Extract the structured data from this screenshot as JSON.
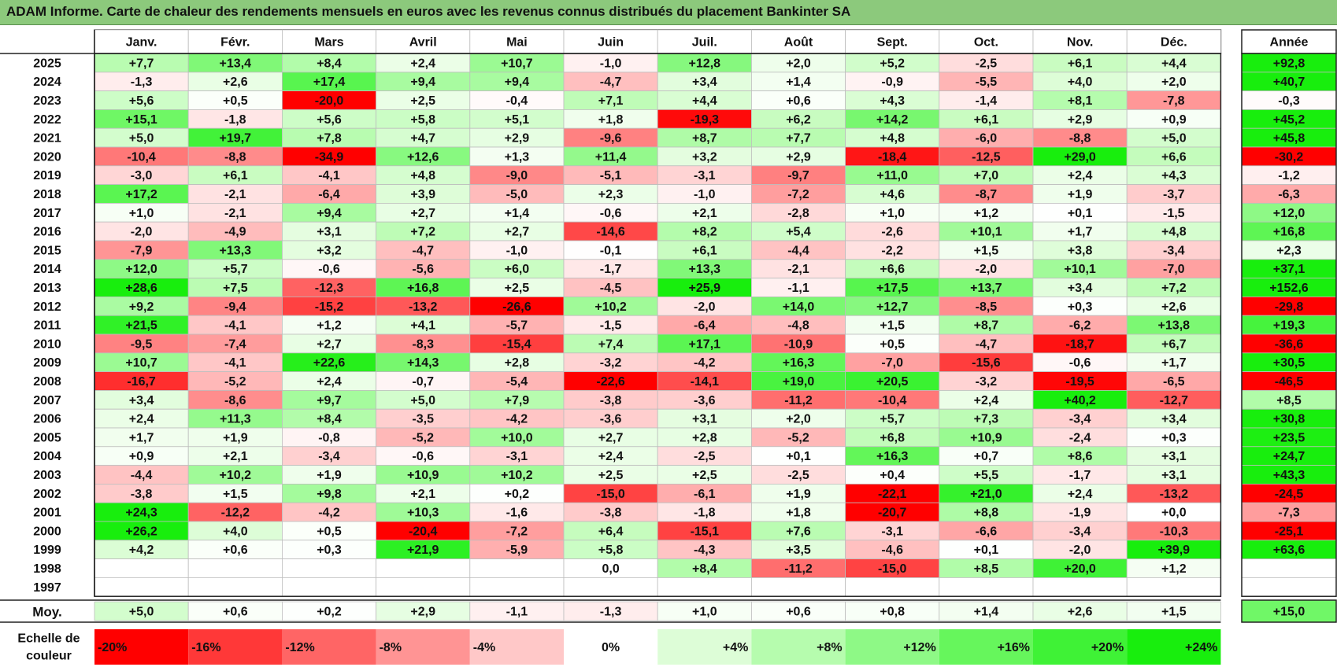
{
  "title": "ADAM Informe. Carte de chaleur des rendements mensuels en euros avec les revenus connus distribués du placement Bankinter SA",
  "chart_data": {
    "type": "heatmap",
    "title": "ADAM Informe. Carte de chaleur des rendements mensuels en euros avec les revenus connus distribués du placement Bankinter SA",
    "columns": [
      "Janv.",
      "Févr.",
      "Mars",
      "Avril",
      "Mai",
      "Juin",
      "Juil.",
      "Août",
      "Sept.",
      "Oct.",
      "Nov.",
      "Déc."
    ],
    "year_header": "Année",
    "rows": [
      {
        "label": "2025",
        "values": [
          7.7,
          13.4,
          8.4,
          2.4,
          10.7,
          -1.0,
          12.8,
          2.0,
          5.2,
          -2.5,
          6.1,
          4.4
        ],
        "year": 92.8
      },
      {
        "label": "2024",
        "values": [
          -1.3,
          2.6,
          17.4,
          9.4,
          9.4,
          -4.7,
          3.4,
          1.4,
          -0.9,
          -5.5,
          4.0,
          2.0
        ],
        "year": 40.7
      },
      {
        "label": "2023",
        "values": [
          5.6,
          0.5,
          -20.0,
          2.5,
          -0.4,
          7.1,
          4.4,
          0.6,
          4.3,
          -1.4,
          8.1,
          -7.8
        ],
        "year": -0.3
      },
      {
        "label": "2022",
        "values": [
          15.1,
          -1.8,
          5.6,
          5.8,
          5.1,
          1.8,
          -19.3,
          6.2,
          14.2,
          6.1,
          2.9,
          0.9
        ],
        "year": 45.2
      },
      {
        "label": "2021",
        "values": [
          5.0,
          19.7,
          7.8,
          4.7,
          2.9,
          -9.6,
          8.7,
          7.7,
          4.8,
          -6.0,
          -8.8,
          5.0
        ],
        "year": 45.8
      },
      {
        "label": "2020",
        "values": [
          -10.4,
          -8.8,
          -34.9,
          12.6,
          1.3,
          11.4,
          3.2,
          2.9,
          -18.4,
          -12.5,
          29.0,
          6.6
        ],
        "year": -30.2
      },
      {
        "label": "2019",
        "values": [
          -3.0,
          6.1,
          -4.1,
          4.8,
          -9.0,
          -5.1,
          -3.1,
          -9.7,
          11.0,
          7.0,
          2.4,
          4.3
        ],
        "year": -1.2
      },
      {
        "label": "2018",
        "values": [
          17.2,
          -2.1,
          -6.4,
          3.9,
          -5.0,
          2.3,
          -1.0,
          -7.2,
          4.6,
          -8.7,
          1.9,
          -3.7
        ],
        "year": -6.3
      },
      {
        "label": "2017",
        "values": [
          1.0,
          -2.1,
          9.4,
          2.7,
          1.4,
          -0.6,
          2.1,
          -2.8,
          1.0,
          1.2,
          0.1,
          -1.5
        ],
        "year": 12.0
      },
      {
        "label": "2016",
        "values": [
          -2.0,
          -4.9,
          3.1,
          7.2,
          2.7,
          -14.6,
          8.2,
          5.4,
          -2.6,
          10.1,
          1.7,
          4.8
        ],
        "year": 16.8
      },
      {
        "label": "2015",
        "values": [
          -7.9,
          13.3,
          3.2,
          -4.7,
          -1.0,
          -0.1,
          6.1,
          -4.4,
          -2.2,
          1.5,
          3.8,
          -3.4
        ],
        "year": 2.3
      },
      {
        "label": "2014",
        "values": [
          12.0,
          5.7,
          -0.6,
          -5.6,
          6.0,
          -1.7,
          13.3,
          -2.1,
          6.6,
          -2.0,
          10.1,
          -7.0
        ],
        "year": 37.1
      },
      {
        "label": "2013",
        "values": [
          28.6,
          7.5,
          -12.3,
          16.8,
          2.5,
          -4.5,
          25.9,
          -1.1,
          17.5,
          13.7,
          3.4,
          7.2
        ],
        "year": 152.6
      },
      {
        "label": "2012",
        "values": [
          9.2,
          -9.4,
          -15.2,
          -13.2,
          -26.6,
          10.2,
          -2.0,
          14.0,
          12.7,
          -8.5,
          0.3,
          2.6
        ],
        "year": -29.8
      },
      {
        "label": "2011",
        "values": [
          21.5,
          -4.1,
          1.2,
          4.1,
          -5.7,
          -1.5,
          -6.4,
          -4.8,
          1.5,
          8.7,
          -6.2,
          13.8
        ],
        "year": 19.3
      },
      {
        "label": "2010",
        "values": [
          -9.5,
          -7.4,
          2.7,
          -8.3,
          -15.4,
          7.4,
          17.1,
          -10.9,
          0.5,
          -4.7,
          -18.7,
          6.7
        ],
        "year": -36.6
      },
      {
        "label": "2009",
        "values": [
          10.7,
          -4.1,
          22.6,
          14.3,
          2.8,
          -3.2,
          -4.2,
          16.3,
          -7.0,
          -15.6,
          -0.6,
          1.7
        ],
        "year": 30.5
      },
      {
        "label": "2008",
        "values": [
          -16.7,
          -5.2,
          2.4,
          -0.7,
          -5.4,
          -22.6,
          -14.1,
          19.0,
          20.5,
          -3.2,
          -19.5,
          -6.5
        ],
        "year": -46.5
      },
      {
        "label": "2007",
        "values": [
          3.4,
          -8.6,
          9.7,
          5.0,
          7.9,
          -3.8,
          -3.6,
          -11.2,
          -10.4,
          2.4,
          40.2,
          -12.7
        ],
        "year": 8.5
      },
      {
        "label": "2006",
        "values": [
          2.4,
          11.3,
          8.4,
          -3.5,
          -4.2,
          -3.6,
          3.1,
          2.0,
          5.7,
          7.3,
          -3.4,
          3.4
        ],
        "year": 30.8
      },
      {
        "label": "2005",
        "values": [
          1.7,
          1.9,
          -0.8,
          -5.2,
          10.0,
          2.7,
          2.8,
          -5.2,
          6.8,
          10.9,
          -2.4,
          0.3
        ],
        "year": 23.5
      },
      {
        "label": "2004",
        "values": [
          0.9,
          2.1,
          -3.4,
          -0.6,
          -3.1,
          2.4,
          -2.5,
          0.1,
          16.3,
          0.7,
          8.6,
          3.1
        ],
        "year": 24.7
      },
      {
        "label": "2003",
        "values": [
          -4.4,
          10.2,
          1.9,
          10.9,
          10.2,
          2.5,
          2.5,
          -2.5,
          0.4,
          5.5,
          -1.7,
          3.1
        ],
        "year": 43.3
      },
      {
        "label": "2002",
        "values": [
          -3.8,
          1.5,
          9.8,
          2.1,
          0.2,
          -15.0,
          -6.1,
          1.9,
          -22.1,
          21.0,
          2.4,
          -13.2
        ],
        "year": -24.5
      },
      {
        "label": "2001",
        "values": [
          24.3,
          -12.2,
          -4.2,
          10.3,
          -1.6,
          -3.8,
          -1.8,
          1.8,
          -20.7,
          8.8,
          -1.9,
          0.0
        ],
        "year": -7.3
      },
      {
        "label": "2000",
        "values": [
          26.2,
          4.0,
          0.5,
          -20.4,
          -7.2,
          6.4,
          -15.1,
          7.6,
          -3.1,
          -6.6,
          -3.4,
          -10.3
        ],
        "year": -25.1
      },
      {
        "label": "1999",
        "values": [
          4.2,
          0.6,
          0.3,
          21.9,
          -5.9,
          5.8,
          -4.3,
          3.5,
          -4.6,
          0.1,
          -2.0,
          39.9
        ],
        "year": 63.6
      },
      {
        "label": "1998",
        "values": [
          null,
          null,
          null,
          null,
          null,
          0.0,
          8.4,
          -11.2,
          -15.0,
          8.5,
          20.0,
          1.2
        ],
        "year": null
      },
      {
        "label": "1997",
        "values": [
          null,
          null,
          null,
          null,
          null,
          null,
          null,
          null,
          null,
          null,
          null,
          null
        ],
        "year": null
      }
    ],
    "average": {
      "label": "Moy.",
      "values": [
        5.0,
        0.6,
        0.2,
        2.9,
        -1.1,
        -1.3,
        1.0,
        0.6,
        0.8,
        1.4,
        2.6,
        1.5
      ],
      "year": 15.0
    },
    "scale": {
      "label_line1": "Echelle de",
      "label_line2": "couleur",
      "stops": [
        {
          "value": -20,
          "label": "-20%",
          "color": "#ff0000"
        },
        {
          "value": -16,
          "label": "-16%",
          "color": "#ff3838"
        },
        {
          "value": -12,
          "label": "-12%",
          "color": "#ff6565"
        },
        {
          "value": -8,
          "label": "-8%",
          "color": "#ff9494"
        },
        {
          "value": -4,
          "label": "-4%",
          "color": "#ffc8c8"
        },
        {
          "value": 0,
          "label": "0%",
          "color": "#ffffff"
        },
        {
          "value": 4,
          "label": "+4%",
          "color": "#ddfdd7"
        },
        {
          "value": 8,
          "label": "+8%",
          "color": "#b6fcae"
        },
        {
          "value": 12,
          "label": "+12%",
          "color": "#8ef986"
        },
        {
          "value": 16,
          "label": "+16%",
          "color": "#66f65c"
        },
        {
          "value": 20,
          "label": "+20%",
          "color": "#3ff236"
        },
        {
          "value": 24,
          "label": "+24%",
          "color": "#18ee0d"
        }
      ]
    }
  }
}
